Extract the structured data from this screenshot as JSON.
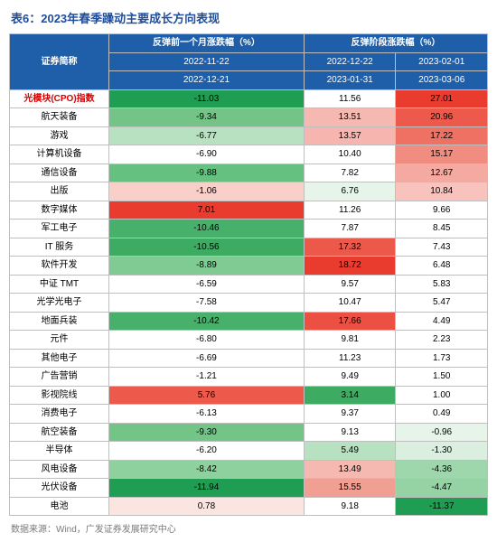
{
  "title": "表6：2023年春季躁动主要成长方向表现",
  "header": {
    "name": "证券简称",
    "group1": "反弹前一个月涨跌幅（%）",
    "group2": "反弹阶段涨跌幅（%）",
    "period1": [
      "2022-11-22",
      "2022-12-21"
    ],
    "period2": [
      "2022-12-22",
      "2023-01-31"
    ],
    "period3": [
      "2023-02-01",
      "2023-03-06"
    ]
  },
  "rows": [
    {
      "name": "光模块(CPO)指数",
      "highlight": true,
      "v1": "-11.03",
      "c1": "#1f9e53",
      "v2": "11.56",
      "c2": "#ffffff",
      "v3": "27.01",
      "c3": "#ea3b2f"
    },
    {
      "name": "航天装备",
      "v1": "-9.34",
      "c1": "#74c488",
      "v2": "13.51",
      "c2": "#f6b9b2",
      "v3": "20.96",
      "c3": "#ed5a4b"
    },
    {
      "name": "游戏",
      "v1": "-6.77",
      "c1": "#b7e1c0",
      "v2": "13.57",
      "c2": "#f6b6af",
      "v3": "17.22",
      "c3": "#ef7164"
    },
    {
      "name": "计算机设备",
      "v1": "-6.90",
      "c1": "#ffffff",
      "v2": "10.40",
      "c2": "#ffffff",
      "v3": "15.17",
      "c3": "#f08d80"
    },
    {
      "name": "通信设备",
      "v1": "-9.88",
      "c1": "#66c07f",
      "v2": "7.82",
      "c2": "#ffffff",
      "v3": "12.67",
      "c3": "#f4aaa0"
    },
    {
      "name": "出版",
      "v1": "-1.06",
      "c1": "#f8cfc9",
      "v2": "6.76",
      "c2": "#e6f4ea",
      "v3": "10.84",
      "c3": "#f7c3bc"
    },
    {
      "name": "数字媒体",
      "v1": "7.01",
      "c1": "#ea3b2f",
      "v2": "11.26",
      "c2": "#ffffff",
      "v3": "9.66",
      "c3": "#ffffff"
    },
    {
      "name": "军工电子",
      "v1": "-10.46",
      "c1": "#47b06a",
      "v2": "7.87",
      "c2": "#ffffff",
      "v3": "8.45",
      "c3": "#ffffff"
    },
    {
      "name": "IT 服务",
      "v1": "-10.56",
      "c1": "#3eab63",
      "v2": "17.32",
      "c2": "#ec584a",
      "v3": "7.43",
      "c3": "#ffffff"
    },
    {
      "name": "软件开发",
      "v1": "-8.89",
      "c1": "#80ca93",
      "v2": "18.72",
      "c2": "#ea3b2f",
      "v3": "6.48",
      "c3": "#ffffff"
    },
    {
      "name": "中证 TMT",
      "v1": "-6.59",
      "c1": "#ffffff",
      "v2": "9.57",
      "c2": "#ffffff",
      "v3": "5.83",
      "c3": "#ffffff"
    },
    {
      "name": "光学光电子",
      "v1": "-7.58",
      "c1": "#ffffff",
      "v2": "10.47",
      "c2": "#ffffff",
      "v3": "5.47",
      "c3": "#ffffff"
    },
    {
      "name": "地面兵装",
      "v1": "-10.42",
      "c1": "#47b06a",
      "v2": "17.66",
      "c2": "#ec5042",
      "v3": "4.49",
      "c3": "#ffffff"
    },
    {
      "name": "元件",
      "v1": "-6.80",
      "c1": "#ffffff",
      "v2": "9.81",
      "c2": "#ffffff",
      "v3": "2.23",
      "c3": "#ffffff"
    },
    {
      "name": "其他电子",
      "v1": "-6.69",
      "c1": "#ffffff",
      "v2": "11.23",
      "c2": "#ffffff",
      "v3": "1.73",
      "c3": "#ffffff"
    },
    {
      "name": "广告营销",
      "v1": "-1.21",
      "c1": "#ffffff",
      "v2": "9.49",
      "c2": "#ffffff",
      "v3": "1.50",
      "c3": "#ffffff"
    },
    {
      "name": "影视院线",
      "v1": "5.76",
      "c1": "#ed5a4b",
      "v2": "3.14",
      "c2": "#3eab63",
      "v3": "1.00",
      "c3": "#ffffff"
    },
    {
      "name": "消费电子",
      "v1": "-6.13",
      "c1": "#ffffff",
      "v2": "9.37",
      "c2": "#ffffff",
      "v3": "0.49",
      "c3": "#ffffff"
    },
    {
      "name": "航空装备",
      "v1": "-9.30",
      "c1": "#72c487",
      "v2": "9.13",
      "c2": "#ffffff",
      "v3": "-0.96",
      "c3": "#e6f4ea"
    },
    {
      "name": "半导体",
      "v1": "-6.20",
      "c1": "#ffffff",
      "v2": "5.49",
      "c2": "#b7e1c0",
      "v3": "-1.30",
      "c3": "#daefe0"
    },
    {
      "name": "风电设备",
      "v1": "-8.42",
      "c1": "#8fd09f",
      "v2": "13.49",
      "c2": "#f6b9b2",
      "v3": "-4.36",
      "c3": "#9ed7ab"
    },
    {
      "name": "光伏设备",
      "v1": "-11.94",
      "c1": "#1f9e53",
      "v2": "15.55",
      "c2": "#f19f93",
      "v3": "-4.47",
      "c3": "#95d3a4"
    },
    {
      "name": "电池",
      "v1": "0.78",
      "c1": "#fbe5e1",
      "v2": "9.18",
      "c2": "#ffffff",
      "v3": "-11.37",
      "c3": "#1f9e53"
    }
  ],
  "source": "数据来源：Wind，广发证券发展研究中心"
}
